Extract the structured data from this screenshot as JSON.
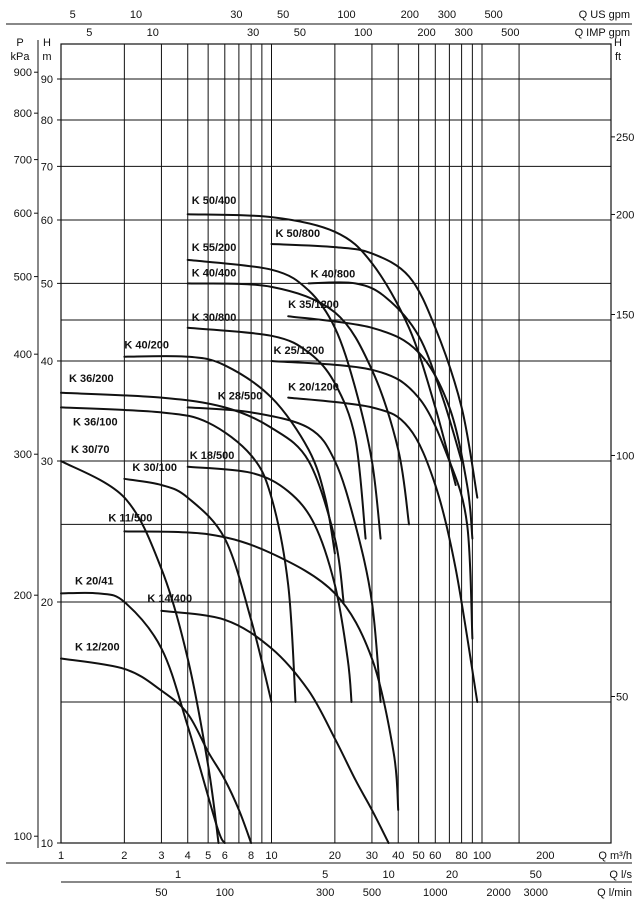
{
  "chart_data": {
    "type": "line",
    "title": "",
    "grid": true,
    "x_scale": "log",
    "y_scale": "log",
    "xlim": [
      1,
      150
    ],
    "ylim": [
      10,
      100
    ],
    "axes": {
      "bottom_main": {
        "unit": "Q m³/h",
        "ticks": [
          1,
          2,
          3,
          4,
          5,
          6,
          8,
          10,
          20,
          30,
          40,
          50,
          60,
          80,
          100,
          200
        ]
      },
      "bottom_ls": {
        "unit": "Q l/s",
        "ticks": [
          1,
          5,
          10,
          20,
          50
        ]
      },
      "bottom_lmin": {
        "unit": "Q l/min",
        "ticks": [
          50,
          100,
          300,
          500,
          1000,
          2000,
          3000
        ]
      },
      "top_usgpm": {
        "unit": "Q US gpm",
        "ticks": [
          5,
          10,
          30,
          50,
          100,
          200,
          300,
          500
        ]
      },
      "top_impgpm": {
        "unit": "Q IMP gpm",
        "ticks": [
          5,
          10,
          30,
          50,
          100,
          200,
          300,
          500
        ]
      },
      "left_m": {
        "unit_line1": "H",
        "unit_line2": "m",
        "ticks": [
          10,
          20,
          30,
          40,
          50,
          60,
          70,
          80,
          90
        ]
      },
      "left_kpa": {
        "unit_line1": "P",
        "unit_line2": "kPa",
        "ticks": [
          100,
          200,
          300,
          400,
          500,
          600,
          700,
          800,
          900
        ]
      },
      "right_ft": {
        "unit_line1": "H",
        "unit_line2": "ft",
        "ticks": [
          50,
          100,
          150,
          200,
          250
        ]
      }
    },
    "series": [
      {
        "name": "K 50/400",
        "points": [
          [
            4,
            61
          ],
          [
            10,
            60.5
          ],
          [
            20,
            58
          ],
          [
            30,
            53
          ],
          [
            45,
            44
          ],
          [
            60,
            35
          ],
          [
            75,
            28
          ]
        ]
      },
      {
        "name": "K 50/800",
        "points": [
          [
            10,
            56
          ],
          [
            20,
            55.5
          ],
          [
            30,
            54.5
          ],
          [
            45,
            51
          ],
          [
            60,
            44
          ],
          [
            80,
            35
          ],
          [
            95,
            27
          ]
        ]
      },
      {
        "name": "K 55/200",
        "points": [
          [
            4,
            53.5
          ],
          [
            10,
            52
          ],
          [
            15,
            49
          ],
          [
            20,
            44
          ],
          [
            25,
            37
          ],
          [
            30,
            30
          ],
          [
            33,
            24
          ]
        ]
      },
      {
        "name": "K 40/400",
        "points": [
          [
            4,
            50
          ],
          [
            10,
            49.5
          ],
          [
            20,
            46
          ],
          [
            30,
            39
          ],
          [
            40,
            31
          ],
          [
            45,
            25
          ]
        ]
      },
      {
        "name": "K 40/800",
        "points": [
          [
            15,
            50
          ],
          [
            25,
            50
          ],
          [
            35,
            48
          ],
          [
            50,
            43
          ],
          [
            65,
            36
          ],
          [
            80,
            30
          ]
        ]
      },
      {
        "name": "K 30/800",
        "points": [
          [
            4,
            44
          ],
          [
            10,
            43
          ],
          [
            15,
            41
          ],
          [
            20,
            37.5
          ],
          [
            25,
            32
          ],
          [
            28,
            24
          ]
        ]
      },
      {
        "name": "K 35/1200",
        "points": [
          [
            12,
            45.5
          ],
          [
            30,
            44
          ],
          [
            50,
            41
          ],
          [
            70,
            35
          ],
          [
            85,
            28
          ],
          [
            90,
            24
          ]
        ]
      },
      {
        "name": "K 40/200",
        "points": [
          [
            2,
            40.5
          ],
          [
            4,
            40.5
          ],
          [
            6,
            39.5
          ],
          [
            10,
            36
          ],
          [
            15,
            31
          ],
          [
            18,
            27
          ],
          [
            20,
            23
          ]
        ]
      },
      {
        "name": "K 25/1200",
        "points": [
          [
            10,
            40
          ],
          [
            30,
            39
          ],
          [
            50,
            36
          ],
          [
            70,
            30
          ],
          [
            85,
            25
          ],
          [
            90,
            18
          ]
        ]
      },
      {
        "name": "K 36/200",
        "points": [
          [
            1,
            36.5
          ],
          [
            3,
            36
          ],
          [
            6,
            35
          ],
          [
            10,
            33
          ],
          [
            15,
            30
          ],
          [
            20,
            24
          ],
          [
            22,
            20
          ]
        ]
      },
      {
        "name": "K 20/1200",
        "points": [
          [
            12,
            36
          ],
          [
            30,
            35
          ],
          [
            45,
            33
          ],
          [
            60,
            28
          ],
          [
            75,
            22
          ],
          [
            95,
            15
          ]
        ]
      },
      {
        "name": "K 28/500",
        "points": [
          [
            4,
            35
          ],
          [
            8,
            34.5
          ],
          [
            15,
            33
          ],
          [
            20,
            30
          ],
          [
            25,
            25
          ],
          [
            30,
            20
          ],
          [
            33,
            15
          ]
        ]
      },
      {
        "name": "K 36/100",
        "points": [
          [
            1,
            35
          ],
          [
            3,
            34.5
          ],
          [
            5,
            33.5
          ],
          [
            8,
            30.5
          ],
          [
            10,
            27
          ],
          [
            12,
            21
          ],
          [
            13,
            15
          ]
        ]
      },
      {
        "name": "K 30/70",
        "points": [
          [
            1,
            30
          ],
          [
            2,
            27
          ],
          [
            3,
            22
          ],
          [
            4,
            17
          ],
          [
            5,
            12.5
          ],
          [
            5.6,
            10
          ]
        ]
      },
      {
        "name": "K 30/100",
        "points": [
          [
            2,
            28.5
          ],
          [
            3,
            28
          ],
          [
            4,
            27
          ],
          [
            6,
            24
          ],
          [
            8,
            19
          ],
          [
            10,
            15
          ]
        ]
      },
      {
        "name": "K 18/500",
        "points": [
          [
            4,
            29.5
          ],
          [
            8,
            29
          ],
          [
            12,
            27.5
          ],
          [
            16,
            25
          ],
          [
            20,
            21
          ],
          [
            23,
            17
          ],
          [
            24,
            15
          ]
        ]
      },
      {
        "name": "K 11/500",
        "points": [
          [
            2,
            24.5
          ],
          [
            5,
            24.3
          ],
          [
            10,
            23
          ],
          [
            20,
            20.5
          ],
          [
            30,
            17
          ],
          [
            38,
            13
          ],
          [
            40,
            11
          ]
        ]
      },
      {
        "name": "K 20/41",
        "points": [
          [
            1,
            20.5
          ],
          [
            1.5,
            20.5
          ],
          [
            2,
            20
          ],
          [
            3,
            17.5
          ],
          [
            4,
            14
          ],
          [
            5.5,
            10.5
          ],
          [
            6,
            10
          ]
        ]
      },
      {
        "name": "K 14/400",
        "points": [
          [
            3,
            19.5
          ],
          [
            6,
            19
          ],
          [
            10,
            17.5
          ],
          [
            15,
            15.5
          ],
          [
            20,
            13.5
          ],
          [
            25,
            12
          ],
          [
            30,
            11
          ],
          [
            36,
            10
          ]
        ]
      },
      {
        "name": "K 12/200",
        "points": [
          [
            1,
            17
          ],
          [
            2,
            16.5
          ],
          [
            3,
            15.5
          ],
          [
            4,
            14.5
          ],
          [
            5,
            13
          ],
          [
            6,
            12
          ],
          [
            7,
            11
          ],
          [
            8,
            10
          ]
        ]
      }
    ]
  }
}
